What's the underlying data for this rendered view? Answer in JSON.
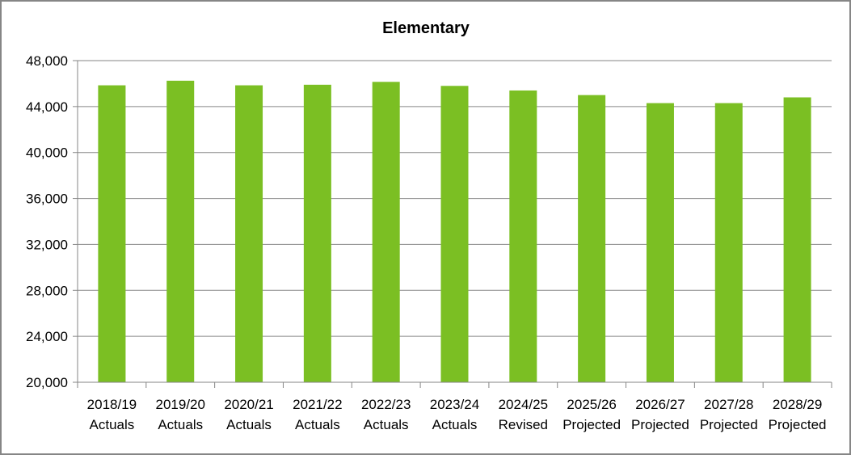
{
  "chart_data": {
    "type": "bar",
    "title": "Elementary",
    "xlabel": "",
    "ylabel": "",
    "categories": [
      [
        "2018/19",
        "Actuals"
      ],
      [
        "2019/20",
        "Actuals"
      ],
      [
        "2020/21",
        "Actuals"
      ],
      [
        "2021/22",
        "Actuals"
      ],
      [
        "2022/23",
        "Actuals"
      ],
      [
        "2023/24",
        "Actuals"
      ],
      [
        "2024/25",
        "Revised"
      ],
      [
        "2025/26",
        "Projected"
      ],
      [
        "2026/27",
        "Projected"
      ],
      [
        "2027/28",
        "Projected"
      ],
      [
        "2028/29",
        "Projected"
      ]
    ],
    "values": [
      45850,
      46250,
      45850,
      45900,
      46150,
      45800,
      45400,
      45000,
      44300,
      44300,
      44800
    ],
    "ylim": [
      20000,
      48000
    ],
    "yticks": [
      20000,
      24000,
      28000,
      32000,
      36000,
      40000,
      44000,
      48000
    ],
    "ytick_labels": [
      "20,000",
      "24,000",
      "28,000",
      "32,000",
      "36,000",
      "40,000",
      "44,000",
      "48,000"
    ],
    "grid": true,
    "legend": "none",
    "colors": {
      "bar": "#7BBF23",
      "grid": "#868686",
      "axis": "#868686"
    }
  }
}
